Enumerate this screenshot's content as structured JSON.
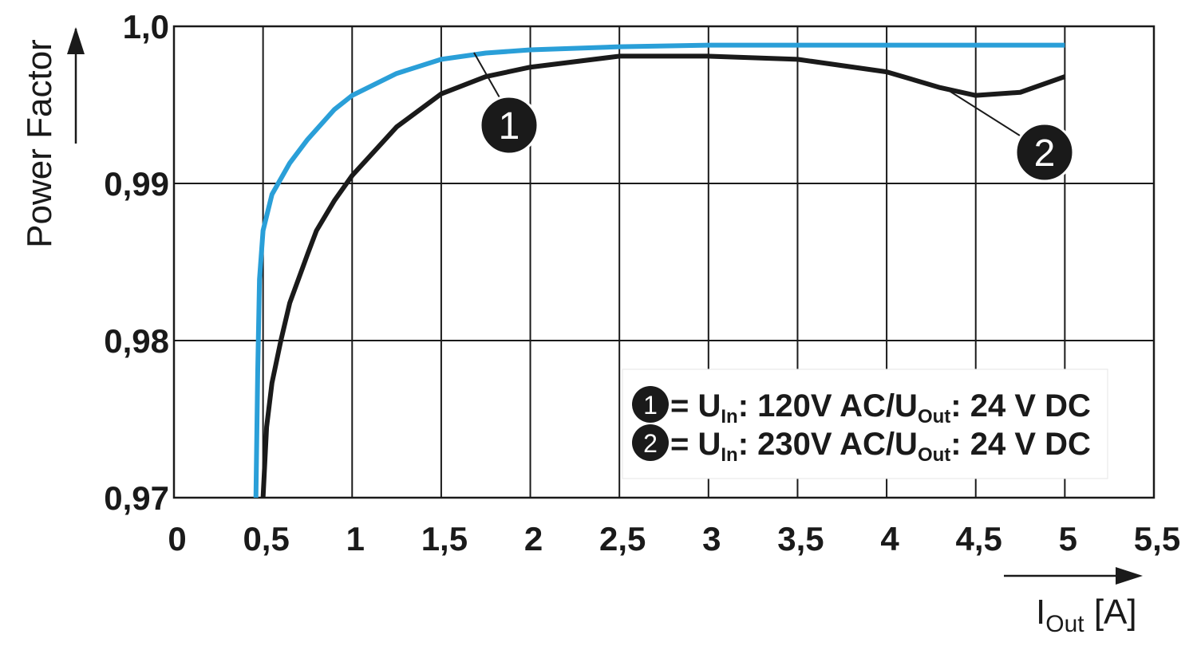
{
  "chart_data": {
    "type": "line",
    "ylabel": "Power Factor",
    "xlabel_parts": [
      "I",
      "Out",
      " [A]"
    ],
    "xlim": [
      0,
      5.5
    ],
    "xticks": [
      0,
      {
        "value": 0.5,
        "label": "0,5"
      },
      1,
      {
        "value": 1.5,
        "label": "1,5"
      },
      2,
      {
        "value": 2.5,
        "label": "2,5"
      },
      3,
      {
        "value": 3.5,
        "label": "3,5"
      },
      4,
      {
        "value": 4.5,
        "label": "4,5"
      },
      5,
      {
        "value": 5.5,
        "label": "5,5"
      }
    ],
    "ylim": [
      0.97,
      1.0
    ],
    "yticks": [
      {
        "value": 0.97,
        "label": "0,97"
      },
      {
        "value": 0.98,
        "label": "0,98"
      },
      {
        "value": 0.99,
        "label": "0,99"
      },
      {
        "value": 1.0,
        "label": "1,0"
      }
    ],
    "grid": true,
    "series": [
      {
        "marker": "1",
        "legend_parts": [
          "= U",
          "In",
          ": 120V AC/U",
          "Out",
          ": 24 V DC"
        ],
        "color": "#2a9fd8",
        "x": [
          0.46,
          0.47,
          0.48,
          0.5,
          0.55,
          0.65,
          0.75,
          0.9,
          1.0,
          1.25,
          1.5,
          1.75,
          2,
          2.5,
          3,
          4,
          5
        ],
        "values": [
          0.97,
          0.978,
          0.9839,
          0.987,
          0.9893,
          0.9913,
          0.9928,
          0.9947,
          0.9956,
          0.997,
          0.9979,
          0.9983,
          0.9985,
          0.9987,
          0.9988,
          0.9988,
          0.9988
        ]
      },
      {
        "marker": "2",
        "legend_parts": [
          "= U",
          "In",
          ": 230V AC/U",
          "Out",
          ": 24 V DC"
        ],
        "color": "#1a1a1a",
        "x": [
          0.5,
          0.52,
          0.55,
          0.6,
          0.65,
          0.75,
          0.8,
          0.9,
          1.0,
          1.25,
          1.5,
          1.75,
          2,
          2.5,
          3,
          3.5,
          4,
          4.3,
          4.5,
          4.75,
          5
        ],
        "values": [
          0.97,
          0.9745,
          0.9773,
          0.98,
          0.9824,
          0.9855,
          0.987,
          0.9889,
          0.9905,
          0.9936,
          0.9957,
          0.9968,
          0.9974,
          0.9981,
          0.9981,
          0.9979,
          0.9971,
          0.9961,
          0.9956,
          0.9958,
          0.9968
        ]
      }
    ]
  }
}
